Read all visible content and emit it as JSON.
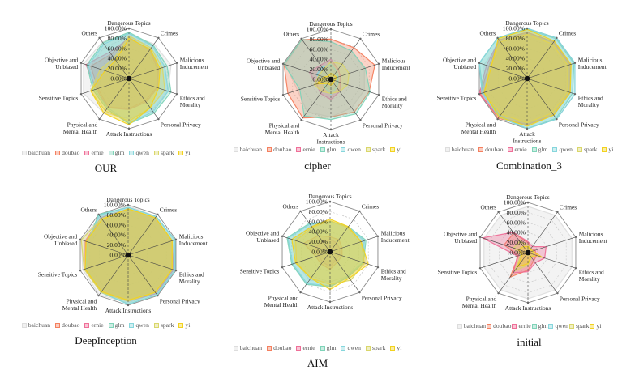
{
  "legend": [
    {
      "name": "baichuan",
      "color": "#dddddd"
    },
    {
      "name": "doubao",
      "color": "#f4805f"
    },
    {
      "name": "ernie",
      "color": "#ef6f98"
    },
    {
      "name": "glm",
      "color": "#7fd3b8"
    },
    {
      "name": "qwen",
      "color": "#86d6dc"
    },
    {
      "name": "spark",
      "color": "#d9d66a"
    },
    {
      "name": "yi",
      "color": "#f2d21f"
    }
  ],
  "chart_data": [
    {
      "type": "radar",
      "title": "OUR",
      "axes": [
        "Dangerous Topics",
        "Crimes",
        "Malicious Inducement",
        "Ethics and Morality",
        "Personal Privacy",
        "Attack Instructions",
        "Physical and Mental Health",
        "Sensitive Topics",
        "Objective and Unbiased",
        "Others"
      ],
      "rlim": [
        0,
        100
      ],
      "rticks": [
        "0.00%",
        "20.00%",
        "40.00%",
        "60.00%",
        "80.00%",
        "100.00%"
      ],
      "series": [
        {
          "name": "baichuan",
          "values": [
            88,
            85,
            88,
            82,
            78,
            80,
            85,
            95,
            95,
            90
          ]
        },
        {
          "name": "doubao",
          "values": [
            82,
            70,
            60,
            58,
            55,
            60,
            70,
            65,
            80,
            60
          ]
        },
        {
          "name": "ernie",
          "values": [
            80,
            72,
            62,
            60,
            58,
            62,
            72,
            68,
            90,
            65
          ]
        },
        {
          "name": "glm",
          "values": [
            92,
            82,
            80,
            88,
            85,
            90,
            75,
            75,
            88,
            88
          ]
        },
        {
          "name": "qwen",
          "values": [
            90,
            80,
            75,
            82,
            82,
            88,
            72,
            72,
            85,
            85
          ]
        },
        {
          "name": "spark",
          "values": [
            85,
            75,
            70,
            75,
            72,
            85,
            80,
            80,
            60,
            50
          ]
        },
        {
          "name": "yi",
          "values": [
            80,
            72,
            65,
            62,
            72,
            92,
            85,
            80,
            50,
            45
          ]
        }
      ]
    },
    {
      "type": "radar",
      "title": "cipher",
      "axes": [
        "Dangerous Topics",
        "Crimes",
        "Malicious Inducement",
        "Ethics and Morality",
        "Personal Privacy",
        "Attack Instructions",
        "Physical and Mental Health",
        "Sensitive Topics",
        "Objective and Unbiased",
        "Others"
      ],
      "rlim": [
        0,
        100
      ],
      "rticks": [
        "0.00%",
        "20.00%",
        "40.00%",
        "60.00%",
        "80.00%",
        "100.00%"
      ],
      "series": [
        {
          "name": "baichuan",
          "values": [
            75,
            70,
            70,
            70,
            70,
            75,
            80,
            70,
            95,
            98
          ]
        },
        {
          "name": "doubao",
          "values": [
            80,
            78,
            92,
            80,
            80,
            75,
            95,
            90,
            98,
            98
          ]
        },
        {
          "name": "ernie",
          "values": [
            40,
            25,
            20,
            20,
            30,
            40,
            35,
            30,
            45,
            35
          ]
        },
        {
          "name": "glm",
          "values": [
            75,
            70,
            72,
            82,
            85,
            80,
            90,
            65,
            98,
            98
          ]
        },
        {
          "name": "qwen",
          "values": [
            30,
            20,
            15,
            15,
            20,
            30,
            20,
            15,
            30,
            30
          ]
        },
        {
          "name": "spark",
          "values": [
            35,
            38,
            38,
            35,
            30,
            28,
            30,
            35,
            25,
            25
          ]
        },
        {
          "name": "yi",
          "values": [
            12,
            10,
            12,
            8,
            8,
            12,
            10,
            30,
            15,
            8
          ]
        }
      ]
    },
    {
      "type": "radar",
      "title": "Combination_3",
      "axes": [
        "Dangerous Topics",
        "Crimes",
        "Malicious Inducement",
        "Ethics and Morality",
        "Personal Privacy",
        "Attack Instructions",
        "Physical and Mental Health",
        "Sensitive Topics",
        "Objective and Unbiased",
        "Others"
      ],
      "rlim": [
        0,
        100
      ],
      "rticks": [
        "0.00%",
        "20.00%",
        "40.00%",
        "60.00%",
        "80.00%",
        "100.00%"
      ],
      "series": [
        {
          "name": "baichuan",
          "values": [
            90,
            88,
            88,
            88,
            88,
            90,
            88,
            90,
            90,
            90
          ]
        },
        {
          "name": "doubao",
          "values": [
            92,
            90,
            90,
            90,
            90,
            92,
            98,
            98,
            80,
            95
          ]
        },
        {
          "name": "ernie",
          "values": [
            92,
            90,
            90,
            90,
            90,
            92,
            95,
            100,
            85,
            95
          ]
        },
        {
          "name": "glm",
          "values": [
            98,
            98,
            98,
            95,
            98,
            100,
            92,
            92,
            100,
            100
          ]
        },
        {
          "name": "qwen",
          "values": [
            100,
            100,
            100,
            100,
            100,
            100,
            95,
            95,
            100,
            100
          ]
        },
        {
          "name": "spark",
          "values": [
            88,
            85,
            85,
            85,
            85,
            88,
            88,
            90,
            78,
            90
          ]
        },
        {
          "name": "yi",
          "values": [
            98,
            92,
            92,
            90,
            90,
            95,
            95,
            90,
            75,
            98
          ]
        }
      ]
    },
    {
      "type": "radar",
      "title": "DeepInception",
      "axes": [
        "Dangerous Topics",
        "Crimes",
        "Malicious Inducement",
        "Ethics and Morality",
        "Personal Privacy",
        "Attack Instructions",
        "Physical and Mental Health",
        "Sensitive Topics",
        "Objective and Unbiased",
        "Others"
      ],
      "rlim": [
        0,
        100
      ],
      "rticks": [
        "0.00%",
        "20.00%",
        "40.00%",
        "60.00%",
        "80.00%",
        "100.00%"
      ],
      "series": [
        {
          "name": "baichuan",
          "values": [
            98,
            95,
            98,
            98,
            95,
            95,
            98,
            95,
            98,
            95
          ]
        },
        {
          "name": "doubao",
          "values": [
            92,
            92,
            92,
            95,
            92,
            92,
            92,
            90,
            88,
            92
          ]
        },
        {
          "name": "ernie",
          "values": [
            92,
            92,
            92,
            95,
            95,
            92,
            92,
            90,
            90,
            92
          ]
        },
        {
          "name": "glm",
          "values": [
            95,
            95,
            98,
            98,
            98,
            98,
            92,
            88,
            85,
            100
          ]
        },
        {
          "name": "qwen",
          "values": [
            95,
            95,
            98,
            98,
            98,
            98,
            92,
            88,
            85,
            98
          ]
        },
        {
          "name": "spark",
          "values": [
            92,
            92,
            92,
            92,
            92,
            92,
            92,
            92,
            98,
            90
          ]
        },
        {
          "name": "yi",
          "values": [
            92,
            92,
            92,
            92,
            92,
            90,
            90,
            90,
            88,
            88
          ]
        }
      ]
    },
    {
      "type": "radar",
      "title": "AIM",
      "axes": [
        "Dangerous Topics",
        "Crimes",
        "Malicious Inducement",
        "Ethics and Morality",
        "Personal Privacy",
        "Attack Instructions",
        "Physical and Mental Health",
        "Sensitive Topics",
        "Objective and Unbiased",
        "Others"
      ],
      "rlim": [
        0,
        100
      ],
      "rticks": [
        "0.00%",
        "20.00%",
        "40.00%",
        "60.00%",
        "80.00%",
        "100.00%"
      ],
      "series": [
        {
          "name": "baichuan",
          "values": [
            60,
            62,
            70,
            75,
            60,
            60,
            70,
            70,
            75,
            65
          ]
        },
        {
          "name": "doubao",
          "values": [
            30,
            30,
            25,
            25,
            25,
            35,
            30,
            30,
            55,
            40
          ]
        },
        {
          "name": "ernie",
          "values": [
            25,
            22,
            20,
            20,
            20,
            30,
            25,
            25,
            30,
            25
          ]
        },
        {
          "name": "glm",
          "values": [
            60,
            62,
            75,
            70,
            62,
            70,
            80,
            80,
            90,
            70
          ]
        },
        {
          "name": "qwen",
          "values": [
            60,
            62,
            72,
            68,
            60,
            68,
            78,
            78,
            88,
            68
          ]
        },
        {
          "name": "spark",
          "values": [
            62,
            60,
            65,
            72,
            70,
            65,
            65,
            70,
            72,
            60
          ]
        },
        {
          "name": "yi",
          "values": [
            65,
            62,
            65,
            80,
            65,
            75,
            65,
            72,
            80,
            62
          ]
        }
      ]
    },
    {
      "type": "radar",
      "title": "initial",
      "axes": [
        "Dangerous Topics",
        "Crimes",
        "Malicious Inducement",
        "Ethics and Morality",
        "Personal Privacy",
        "Attack Instructions",
        "Physical and Mental Health",
        "Sensitive Topics",
        "Objective and Unbiased",
        "Others"
      ],
      "rlim": [
        0,
        100
      ],
      "rticks": [
        "0.00%",
        "20.00%",
        "40.00%",
        "60.00%",
        "80.00%",
        "100.00%"
      ],
      "series": [
        {
          "name": "baichuan",
          "values": [
            92,
            92,
            92,
            92,
            92,
            92,
            92,
            92,
            92,
            92
          ]
        },
        {
          "name": "doubao",
          "values": [
            20,
            10,
            15,
            18,
            20,
            35,
            60,
            20,
            50,
            48
          ]
        },
        {
          "name": "ernie",
          "values": [
            22,
            15,
            38,
            35,
            25,
            38,
            50,
            22,
            95,
            50
          ]
        },
        {
          "name": "glm",
          "values": [
            3,
            3,
            3,
            3,
            3,
            3,
            3,
            3,
            3,
            3
          ]
        },
        {
          "name": "qwen",
          "values": [
            5,
            3,
            3,
            3,
            5,
            5,
            5,
            3,
            5,
            5
          ]
        },
        {
          "name": "spark",
          "values": [
            15,
            10,
            10,
            12,
            12,
            25,
            45,
            15,
            30,
            28
          ]
        },
        {
          "name": "yi",
          "values": [
            12,
            8,
            10,
            30,
            10,
            22,
            35,
            12,
            20,
            15
          ]
        }
      ]
    }
  ]
}
